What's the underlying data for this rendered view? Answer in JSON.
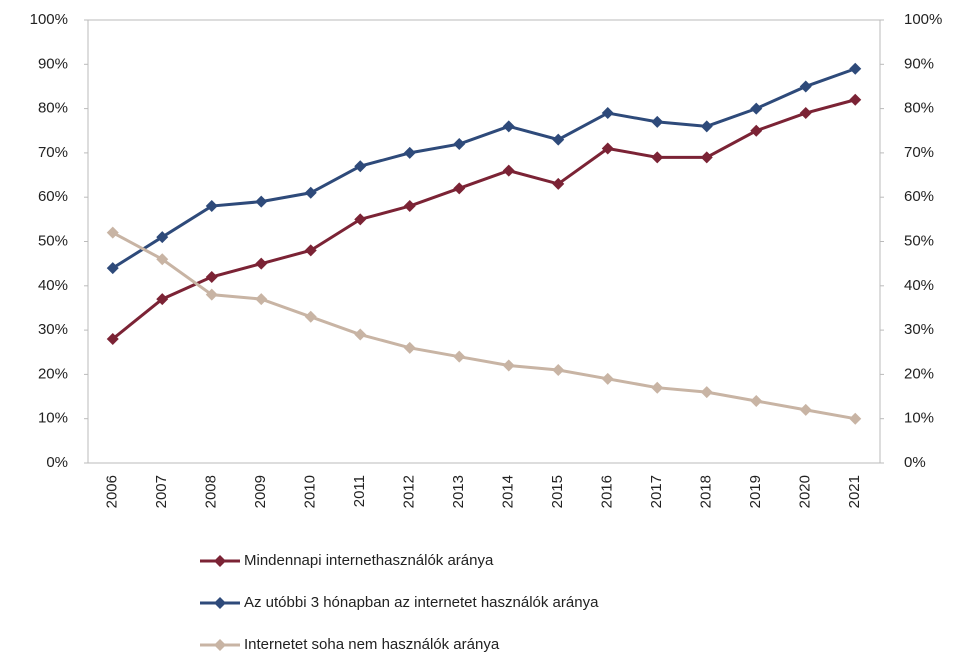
{
  "chart_data": {
    "type": "line",
    "categories": [
      "2006",
      "2007",
      "2008",
      "2009",
      "2010",
      "2011",
      "2012",
      "2013",
      "2014",
      "2015",
      "2016",
      "2017",
      "2018",
      "2019",
      "2020",
      "2021"
    ],
    "series": [
      {
        "name": "Mindennapi internethasználók aránya",
        "color": "#7b2335",
        "values": [
          28,
          37,
          42,
          45,
          48,
          55,
          58,
          62,
          66,
          63,
          71,
          69,
          69,
          75,
          79,
          82
        ]
      },
      {
        "name": "Az utóbbi 3 hónapban az internetet használók aránya",
        "color": "#2e4a7a",
        "values": [
          44,
          51,
          58,
          59,
          61,
          67,
          70,
          72,
          76,
          73,
          79,
          77,
          76,
          80,
          85,
          89
        ]
      },
      {
        "name": "Internetet soha nem használók aránya",
        "color": "#c8b4a4",
        "values": [
          52,
          46,
          38,
          37,
          33,
          29,
          26,
          24,
          22,
          21,
          19,
          17,
          16,
          14,
          12,
          10
        ]
      }
    ],
    "ylim": [
      0,
      100
    ],
    "yticks": [
      {
        "value": 0,
        "label": "0%"
      },
      {
        "value": 10,
        "label": "10%"
      },
      {
        "value": 20,
        "label": "20%"
      },
      {
        "value": 30,
        "label": "30%"
      },
      {
        "value": 40,
        "label": "40%"
      },
      {
        "value": 50,
        "label": "50%"
      },
      {
        "value": 60,
        "label": "60%"
      },
      {
        "value": 70,
        "label": "70%"
      },
      {
        "value": 80,
        "label": "80%"
      },
      {
        "value": 90,
        "label": "90%"
      },
      {
        "value": 100,
        "label": "100%"
      }
    ],
    "y2lim": [
      0,
      100
    ],
    "y2ticks": [
      {
        "value": 0,
        "label": "0%"
      },
      {
        "value": 10,
        "label": "10%"
      },
      {
        "value": 20,
        "label": "20%"
      },
      {
        "value": 30,
        "label": "30%"
      },
      {
        "value": 40,
        "label": "40%"
      },
      {
        "value": 50,
        "label": "50%"
      },
      {
        "value": 60,
        "label": "60%"
      },
      {
        "value": 70,
        "label": "70%"
      },
      {
        "value": 80,
        "label": "80%"
      },
      {
        "value": 90,
        "label": "90%"
      },
      {
        "value": 100,
        "label": "100%"
      }
    ],
    "grid": false,
    "legend": "bottom"
  }
}
